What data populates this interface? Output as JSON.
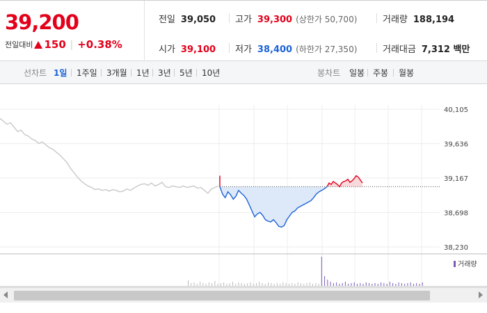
{
  "quote": {
    "price": "39,200",
    "change_label": "전일대비",
    "change": "150",
    "change_rate": "+0.38%",
    "prev_close_label": "전일",
    "prev_close": "39,050",
    "high_label": "고가",
    "high": "39,300",
    "upper_limit_text": "(상한가 50,700)",
    "volume_label": "거래량",
    "volume": "188,194",
    "open_label": "시가",
    "open": "39,100",
    "low_label": "저가",
    "low": "38,400",
    "lower_limit_text": "(하한가 27,350)",
    "amount_label": "거래대금",
    "amount": "7,312 백만"
  },
  "toolbar": {
    "line_label": "선차트",
    "line_periods": [
      "1일",
      "1주일",
      "3개월",
      "1년",
      "3년",
      "5년",
      "10년"
    ],
    "active_period": "1일",
    "candle_label": "봉차트",
    "candle_periods": [
      "일봉",
      "주봉",
      "월봉"
    ]
  },
  "colors": {
    "up": "#e2001a",
    "down": "#1e63d6",
    "prev_day": "#c8c8c8",
    "volume_legend": "#7a5bb5"
  },
  "chart_data": {
    "type": "line",
    "y_ticks": [
      "40,105",
      "39,636",
      "39,167",
      "38,698",
      "38,230"
    ],
    "ylim": [
      38230,
      40105
    ],
    "reference_price": 39050,
    "volume_legend": "거래량",
    "series": [
      {
        "values": [
          39980,
          39940,
          39900,
          39920,
          39860,
          39800,
          39820,
          39760,
          39740,
          39700,
          39680,
          39640,
          39660,
          39620,
          39580,
          39560,
          39520,
          39480,
          39430,
          39380,
          39300,
          39240,
          39180,
          39130,
          39090,
          39060,
          39040,
          39010,
          39020,
          39000,
          39010,
          38990,
          39010,
          39000,
          38980,
          38990,
          39020,
          39000,
          39030,
          39060,
          39080,
          39090,
          39070,
          39100,
          39060,
          39080,
          39110,
          39050,
          39040,
          39060,
          39050,
          39040,
          39060,
          39040,
          39050,
          39060,
          39030,
          39040,
          39000,
          38960,
          39020,
          39040,
          39060
        ]
      },
      {
        "values": [
          39050,
          38950,
          38900,
          38980,
          38940,
          38880,
          38920,
          39000,
          38960,
          38930,
          38880,
          38800,
          38720,
          38640,
          38680,
          38700,
          38660,
          38600,
          38580,
          38570,
          38600,
          38560,
          38510,
          38500,
          38520,
          38600,
          38650,
          38700,
          38720,
          38760,
          38780,
          38800,
          38820,
          38840,
          38860,
          38900,
          38950,
          38980,
          39000,
          39020,
          39050
        ]
      },
      {
        "values": [
          39050,
          39100,
          39080,
          39120,
          39100,
          39080,
          39050,
          39100,
          39120,
          39130,
          39150,
          39110,
          39130,
          39160,
          39200,
          39180,
          39140,
          39100
        ]
      }
    ],
    "volume": [
      8,
      4,
      5,
      3,
      6,
      4,
      3,
      5,
      4,
      7,
      3,
      4,
      5,
      3,
      4,
      6,
      3,
      5,
      4,
      3,
      4,
      5,
      3,
      4,
      6,
      4,
      3,
      5,
      4,
      3,
      4,
      3,
      5,
      4,
      3,
      4,
      3,
      5,
      4,
      3,
      4,
      5,
      3,
      4,
      3,
      42,
      14,
      9,
      6,
      4,
      5,
      3,
      4,
      6,
      3,
      4,
      5,
      3,
      4,
      3,
      5,
      4,
      3,
      4,
      3,
      5,
      4,
      3,
      6,
      4,
      3,
      5,
      4,
      3,
      4,
      5,
      3,
      4,
      3,
      5
    ]
  }
}
